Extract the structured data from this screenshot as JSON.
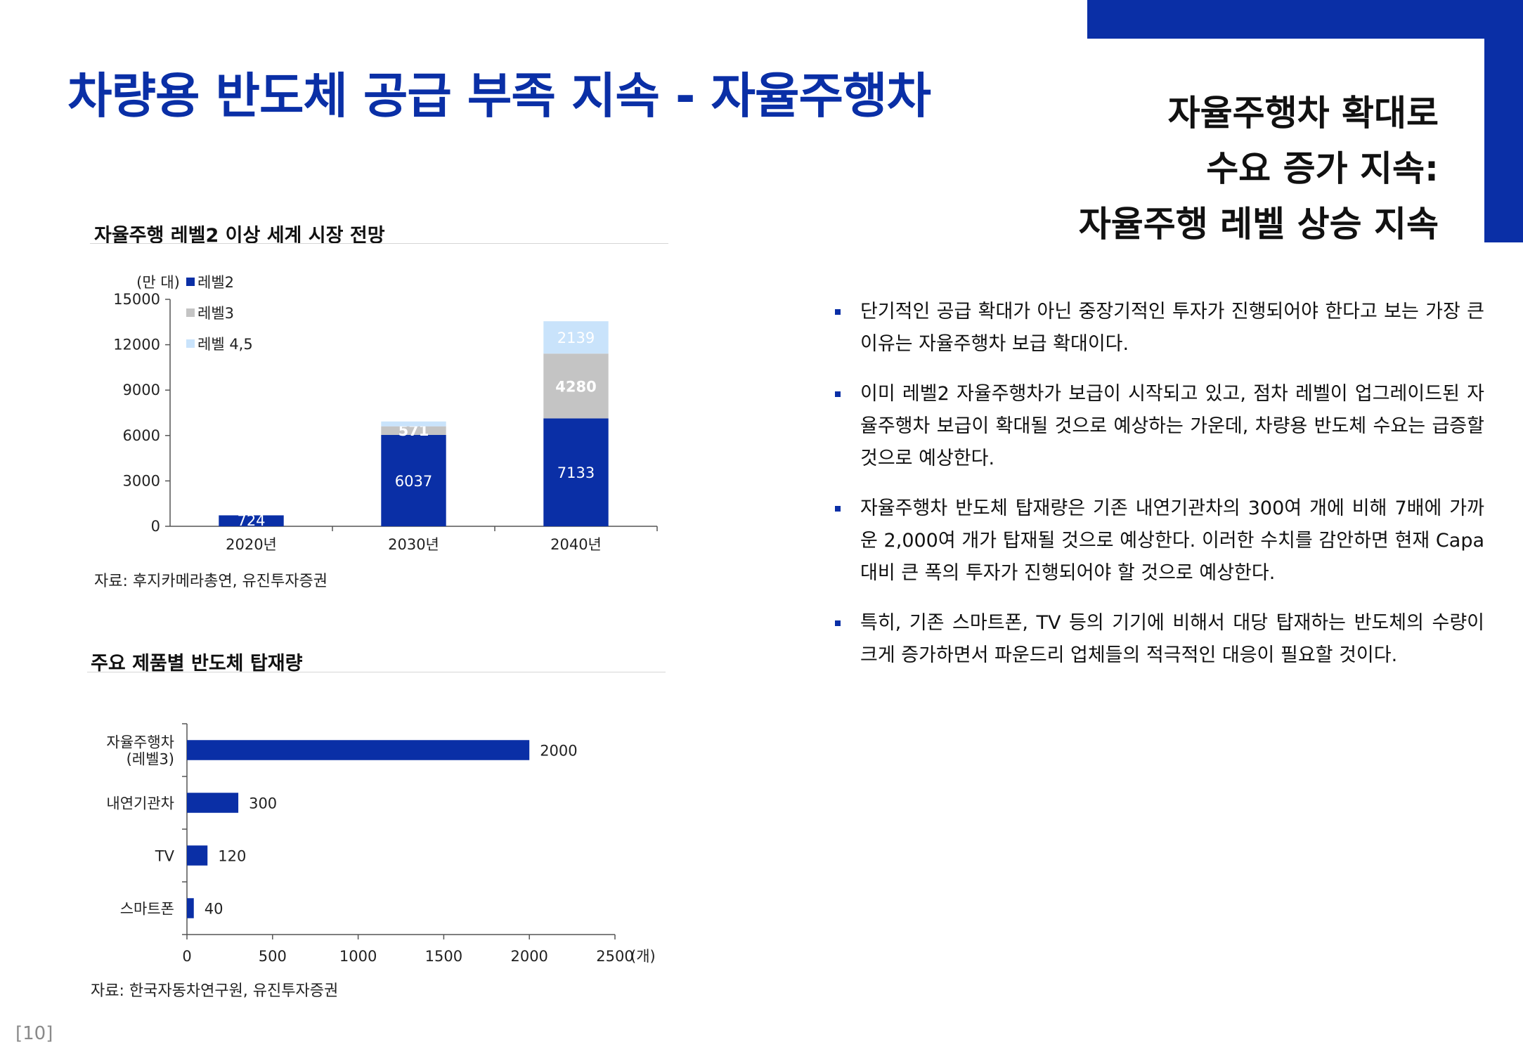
{
  "page": {
    "title": "차량용 반도체 공급 부족 지속 - 자율주행차",
    "headline": [
      "자율주행차 확대로",
      "수요 증가 지속:",
      "자율주행 레벨 상승 지속"
    ],
    "page_number": "[10]",
    "brand_color": "#0a2fa6"
  },
  "bullets": [
    "단기적인 공급 확대가 아닌 중장기적인 투자가 진행되어야 한다고 보는 가장 큰 이유는 자율주행차 보급 확대이다.",
    "이미 레벨2 자율주행차가 보급이 시작되고 있고, 점차 레벨이 업그레이드된 자율주행차 보급이 확대될 것으로 예상하는 가운데, 차량용 반도체 수요는 급증할 것으로 예상한다.",
    "자율주행차 반도체 탑재량은 기존 내연기관차의 300여 개에 비해 7배에 가까운 2,000여 개가 탑재될 것으로 예상한다. 이러한 수치를 감안하면 현재 Capa 대비 큰 폭의 투자가 진행되어야 할 것으로 예상한다.",
    "특히, 기존 스마트폰, TV 등의 기기에 비해서 대당 탑재하는 반도체의 수량이 크게 증가하면서 파운드리 업체들의 적극적인 대응이 필요할 것이다."
  ],
  "chart1": {
    "title": "자율주행 레벨2 이상 세계 시장 전망",
    "source": "자료: 후지카메라총연, 유진투자증권",
    "unit_label": "(만 대)"
  },
  "chart2": {
    "title": "주요 제품별 반도체 탑재량",
    "source": "자료: 한국자동차연구원, 유진투자증권",
    "unit_label": "(개)"
  },
  "chart_data": [
    {
      "type": "bar",
      "stacked": true,
      "title": "자율주행 레벨2 이상 세계 시장 전망",
      "ylabel": "(만 대)",
      "categories": [
        "2020년",
        "2030년",
        "2040년"
      ],
      "ylim": [
        0,
        15000
      ],
      "yticks": [
        0,
        3000,
        6000,
        9000,
        12000,
        15000
      ],
      "series": [
        {
          "name": "레벨2",
          "values": [
            724,
            6037,
            7133
          ],
          "color": "#0a2fa6",
          "label_color": "#ffffff"
        },
        {
          "name": "레벨3",
          "values": [
            0,
            571,
            4280
          ],
          "color": "#c4c4c4",
          "label_color": "#ffffff"
        },
        {
          "name": "레벨 4,5",
          "values": [
            0,
            320,
            2139
          ],
          "color": "#c9e3fb",
          "label_color": "#ffffff"
        }
      ],
      "data_labels": [
        [
          "724",
          "6037",
          "7133"
        ],
        [
          "",
          "571",
          "4280"
        ],
        [
          "",
          "",
          "2139"
        ]
      ],
      "legend": "top-left",
      "grid": false
    },
    {
      "type": "bar",
      "orientation": "horizontal",
      "title": "주요 제품별 반도체 탑재량",
      "xlabel": "(개)",
      "categories": [
        [
          "자율주행차",
          "(레벨3)"
        ],
        [
          "내연기관차"
        ],
        [
          "TV"
        ],
        [
          "스마트폰"
        ]
      ],
      "values": [
        2000,
        300,
        120,
        40
      ],
      "xlim": [
        0,
        2500
      ],
      "xticks": [
        0,
        500,
        1000,
        1500,
        2000,
        2500
      ],
      "color": "#0a2fa6",
      "grid": false
    }
  ]
}
